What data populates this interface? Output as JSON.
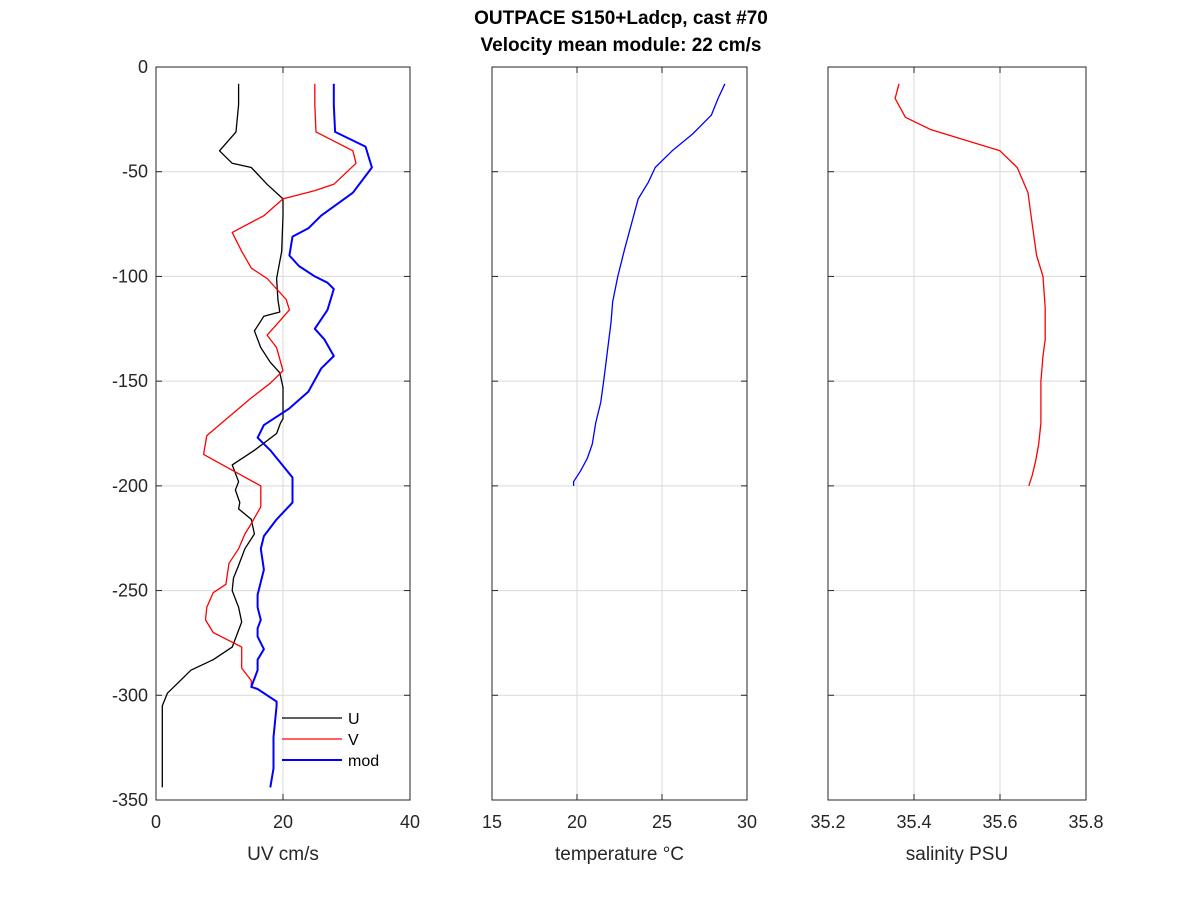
{
  "title_line1": "OUTPACE S150+Ladcp, cast #70",
  "title_line2": "Velocity mean module:  22 cm/s",
  "chart_data": [
    {
      "type": "line",
      "xlabel": "UV cm/s",
      "ylabel": "",
      "xlim": [
        0,
        40
      ],
      "ylim": [
        -350,
        0
      ],
      "xticks": [
        0,
        20,
        40
      ],
      "yticks": [
        0,
        -50,
        -100,
        -150,
        -200,
        -250,
        -300,
        -350
      ],
      "grid": true,
      "legend": "bottom-right",
      "series": [
        {
          "name": "U",
          "color": "#000000",
          "x": [
            13,
            13,
            12.6,
            10,
            12,
            15,
            17.5,
            20,
            20,
            19.8,
            19,
            19.2,
            19.5,
            17,
            15.5,
            16.5,
            18,
            19.5,
            20,
            20,
            20,
            19.6,
            19,
            15.5,
            12,
            13,
            12.5,
            13.2,
            13,
            15,
            15.5,
            14,
            13,
            12.2,
            12,
            13,
            13.5,
            12,
            9,
            5.5,
            3.5,
            1.8,
            1,
            1,
            1
          ],
          "y": [
            -8,
            -18,
            -31,
            -40,
            -46,
            -48,
            -56,
            -63,
            -71,
            -88,
            -101,
            -111,
            -117,
            -119,
            -126,
            -134,
            -141,
            -146,
            -153,
            -160,
            -168,
            -170,
            -175,
            -183,
            -190,
            -198,
            -202,
            -208,
            -211,
            -216,
            -223,
            -230,
            -238,
            -244,
            -250,
            -258,
            -265,
            -277,
            -283,
            -288,
            -294,
            -299,
            -305,
            -330,
            -344
          ]
        },
        {
          "name": "V",
          "color": "#ff0000",
          "x": [
            25,
            25,
            25.2,
            31,
            31.5,
            28,
            25,
            20,
            17,
            12,
            13.5,
            15,
            17.5,
            20.5,
            21,
            19,
            17.5,
            19,
            20,
            18,
            15,
            11.5,
            8,
            7.5,
            16.5,
            16.5,
            15,
            14,
            13,
            11.5,
            11,
            9,
            8,
            7.8,
            9,
            13.5,
            13.5,
            15,
            15
          ],
          "y": [
            -8,
            -18,
            -31,
            -40,
            -46,
            -56,
            -59,
            -63,
            -71,
            -79,
            -88,
            -96,
            -101,
            -111,
            -116,
            -123,
            -128,
            -134,
            -145,
            -151,
            -158,
            -167,
            -176,
            -185,
            -200,
            -210,
            -218,
            -223,
            -230,
            -237,
            -247,
            -251,
            -258,
            -264,
            -270,
            -277,
            -287,
            -293,
            -296
          ]
        },
        {
          "name": "mod",
          "color": "#0000ff",
          "x": [
            28,
            28,
            28.2,
            33,
            34,
            31,
            26,
            24,
            21.5,
            21,
            22.5,
            25,
            27,
            28,
            27,
            25,
            26.5,
            28,
            26,
            24,
            21,
            17,
            16,
            18,
            21.5,
            21.5,
            19,
            17,
            16.5,
            17,
            16,
            16,
            16.5,
            16,
            16,
            17,
            16,
            16,
            15,
            16,
            19,
            19,
            18.5,
            18.5,
            18
          ],
          "y": [
            -8,
            -18,
            -31,
            -38,
            -48,
            -60,
            -71,
            -77,
            -81,
            -90,
            -95,
            -100,
            -103,
            -106,
            -116,
            -125,
            -130,
            -138,
            -144,
            -155,
            -163,
            -171,
            -177,
            -183,
            -196,
            -208,
            -216,
            -224,
            -230,
            -240,
            -252,
            -258,
            -264,
            -268,
            -272,
            -278,
            -283,
            -288,
            -296,
            -297,
            -303,
            -305,
            -320,
            -335,
            -344
          ]
        }
      ]
    },
    {
      "type": "line",
      "xlabel": "temperature °C",
      "xlim": [
        15,
        30
      ],
      "ylim": [
        -350,
        0
      ],
      "xticks": [
        15,
        20,
        25,
        30
      ],
      "grid": true,
      "series": [
        {
          "color": "#0000ff",
          "x": [
            28.7,
            28.3,
            27.9,
            26.8,
            25.6,
            24.6,
            24.2,
            23.6,
            23.2,
            22.8,
            22.4,
            22.1,
            22.0,
            21.8,
            21.6,
            21.4,
            21.1,
            20.9,
            20.6,
            20.2,
            19.8,
            19.8
          ],
          "y": [
            -8,
            -15,
            -23,
            -32,
            -40,
            -48,
            -55,
            -63,
            -75,
            -87,
            -100,
            -112,
            -122,
            -135,
            -148,
            -160,
            -170,
            -180,
            -187,
            -193,
            -198,
            -200
          ]
        }
      ]
    },
    {
      "type": "line",
      "xlabel": "salinity PSU",
      "xlim": [
        35.2,
        35.8
      ],
      "ylim": [
        -350,
        0
      ],
      "xticks": [
        35.2,
        35.4,
        35.6,
        35.8
      ],
      "xticklabels": [
        "35.2",
        "35.4",
        "35.6",
        "35.8"
      ],
      "grid": true,
      "series": [
        {
          "color": "#ff0000",
          "x": [
            35.365,
            35.36,
            35.356,
            35.38,
            35.44,
            35.52,
            35.6,
            35.64,
            35.665,
            35.675,
            35.685,
            35.7,
            35.705,
            35.705,
            35.7,
            35.695,
            35.695,
            35.695,
            35.69,
            35.683,
            35.675,
            35.667
          ],
          "y": [
            -8,
            -12,
            -15,
            -24,
            -30,
            -35,
            -40,
            -48,
            -60,
            -75,
            -90,
            -100,
            -115,
            -130,
            -138,
            -150,
            -160,
            -170,
            -180,
            -188,
            -195,
            -200
          ]
        }
      ]
    }
  ]
}
